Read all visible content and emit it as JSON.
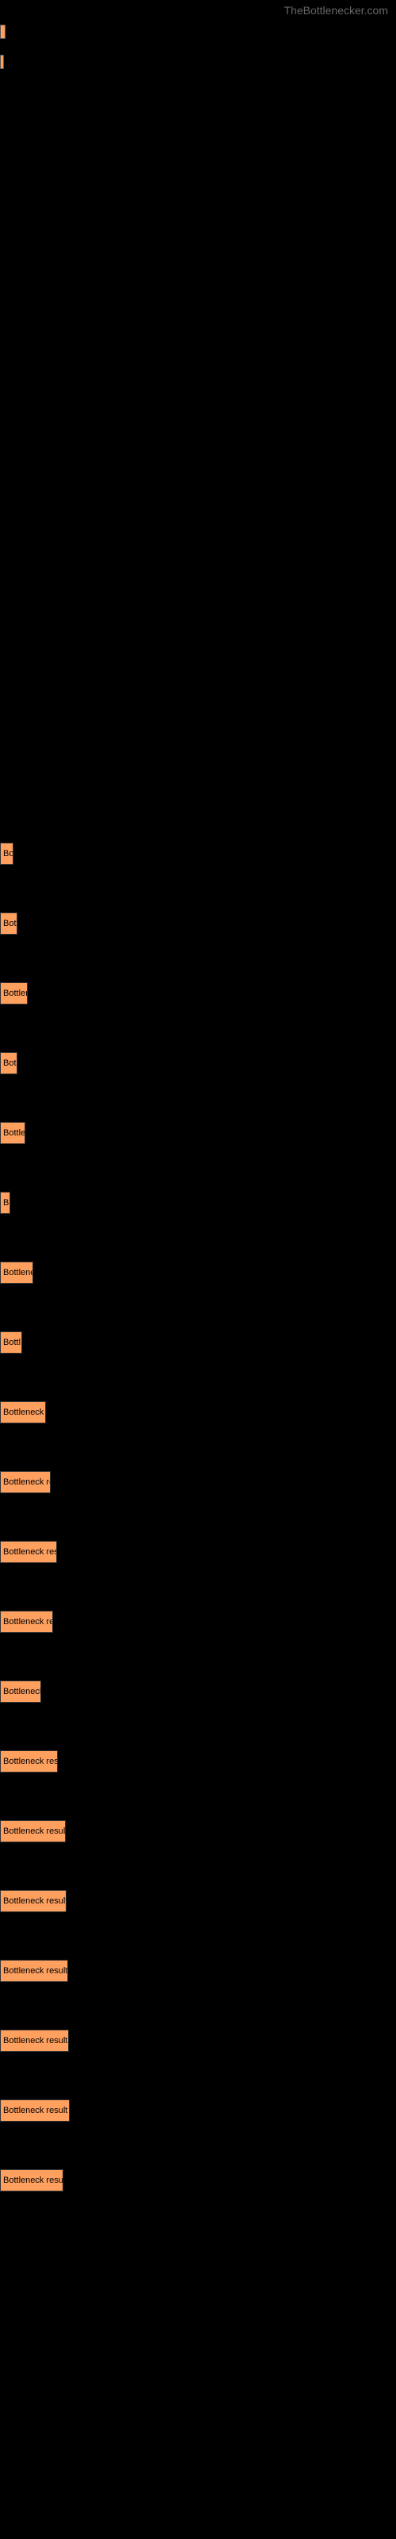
{
  "watermark": "TheBottlenecker.com",
  "bar_color": "#ffa05f",
  "bar_border_color": "#333333",
  "text_color": "#000000",
  "top_bars": [
    {
      "width": 7
    },
    {
      "width": 5
    }
  ],
  "chart_bars": [
    {
      "label": "Bo",
      "width": 17
    },
    {
      "label": "Bott",
      "width": 22
    },
    {
      "label": "Bottlen",
      "width": 35
    },
    {
      "label": "Bot",
      "width": 22
    },
    {
      "label": "Bottle",
      "width": 32
    },
    {
      "label": "B",
      "width": 13
    },
    {
      "label": "Bottlene",
      "width": 42
    },
    {
      "label": "Bottl",
      "width": 28
    },
    {
      "label": "Bottleneck r",
      "width": 58
    },
    {
      "label": "Bottleneck re",
      "width": 64
    },
    {
      "label": "Bottleneck resu",
      "width": 72
    },
    {
      "label": "Bottleneck res",
      "width": 67
    },
    {
      "label": "Bottleneck",
      "width": 52
    },
    {
      "label": "Bottleneck resu",
      "width": 73
    },
    {
      "label": "Bottleneck result",
      "width": 83
    },
    {
      "label": "Bottleneck result",
      "width": 84
    },
    {
      "label": "Bottleneck result",
      "width": 86
    },
    {
      "label": "Bottleneck result",
      "width": 87
    },
    {
      "label": "Bottleneck result",
      "width": 88
    },
    {
      "label": "Bottleneck resul",
      "width": 80
    }
  ]
}
